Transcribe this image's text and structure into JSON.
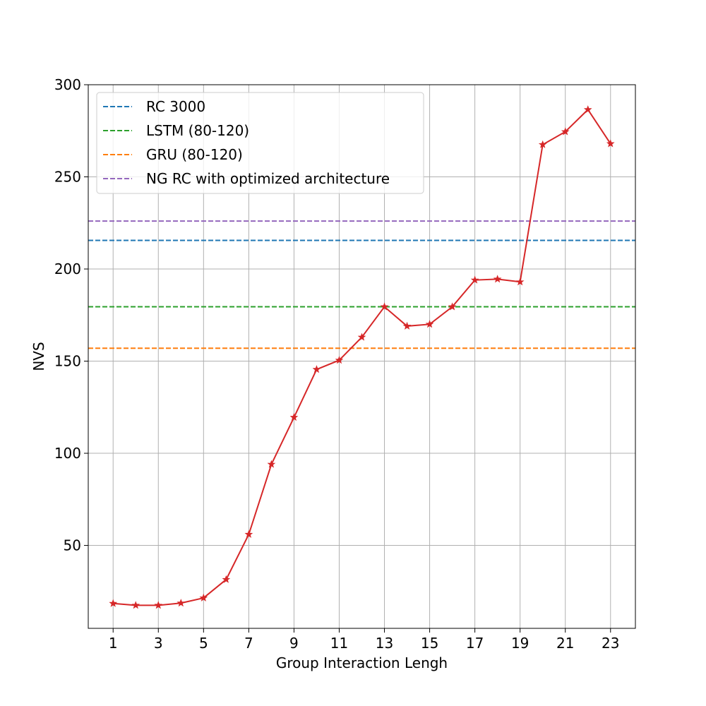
{
  "chart_data": {
    "type": "line",
    "title": "",
    "xlabel": "Group Interaction Lengh",
    "ylabel": "NVS",
    "xlim": [
      -0.1,
      24.1
    ],
    "ylim": [
      5,
      300
    ],
    "xticks": [
      1,
      3,
      5,
      7,
      9,
      11,
      13,
      15,
      17,
      19,
      21,
      23
    ],
    "yticks": [
      50,
      100,
      150,
      200,
      250,
      300
    ],
    "grid": true,
    "legend_position": "top-left",
    "x": [
      1,
      2,
      3,
      4,
      5,
      6,
      7,
      8,
      9,
      10,
      11,
      12,
      13,
      14,
      15,
      16,
      17,
      18,
      19,
      20,
      21,
      22,
      23
    ],
    "series": [
      {
        "name": "",
        "color": "#d62728",
        "marker": "star",
        "values": [
          18.5,
          17.5,
          17.5,
          18.7,
          21.5,
          31.5,
          56,
          94,
          119.5,
          145.5,
          150.5,
          163,
          179.5,
          169,
          170,
          179.5,
          194,
          194.5,
          193,
          267.5,
          274.5,
          286.5,
          268
        ]
      }
    ],
    "reference_lines": [
      {
        "name": "RC 3000",
        "y": 215.5,
        "color": "#1f77b4"
      },
      {
        "name": "LSTM (80-120)",
        "y": 179.5,
        "color": "#2ca02c"
      },
      {
        "name": "GRU (80-120)",
        "y": 157,
        "color": "#ff7f0e"
      },
      {
        "name": "NG RC with optimized architecture",
        "y": 226,
        "color": "#9467bd"
      }
    ]
  }
}
